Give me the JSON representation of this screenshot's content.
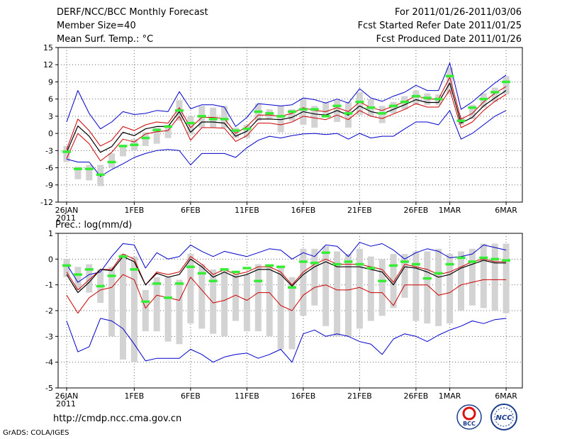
{
  "header": {
    "line1_left": "DERF/NCC/BCC Monthly Forecast",
    "line2_left": "Member Size=40",
    "line3_left": "Mean Surf. Temp.: °C",
    "line1_right": "For 2011/01/26-2011/03/06",
    "line2_right": "Fcst Started Refer Date 2011/01/25",
    "line3_right": "Fcst Produced Date 2011/01/26"
  },
  "footer": {
    "url": "http://cmdp.ncc.cma.gov.cn",
    "credit": "GrADS: COLA/IGES",
    "logo1_text": "BCC",
    "logo2_text": "NCC"
  },
  "colors": {
    "envelope": "#0000cc",
    "spread": "#cc0000",
    "mean": "#000000",
    "box": "#d3d3d3",
    "dash": "#33ee33",
    "grid": "#666666"
  },
  "chart_data": [
    {
      "type": "line",
      "title": "Mean Surf. Temp.: °C",
      "ylabel": "°C",
      "ylim": [
        -12,
        15
      ],
      "yticks": [
        15,
        12,
        9,
        6,
        3,
        0,
        -3,
        -6,
        -9,
        -12
      ],
      "xtick_labels": [
        "26JAN",
        "1FEB",
        "6FEB",
        "11FEB",
        "16FEB",
        "21FEB",
        "26FEB",
        "1MAR",
        "6MAR"
      ],
      "xtick_days": [
        0,
        6,
        11,
        16,
        21,
        26,
        31,
        34,
        39
      ],
      "year_label": "2011",
      "days": 40,
      "series": [
        {
          "name": "max",
          "values": [
            2.0,
            7.5,
            3.5,
            0.8,
            2.0,
            3.8,
            3.3,
            3.5,
            4.0,
            3.8,
            7.3,
            4.3,
            5.0,
            5.0,
            4.6,
            1.2,
            2.8,
            5.2,
            5.0,
            4.8,
            5.0,
            6.2,
            5.9,
            5.3,
            6.0,
            5.3,
            7.8,
            6.2,
            5.6,
            6.5,
            7.2,
            8.4,
            7.5,
            7.5,
            12.3,
            4.2,
            5.5,
            7.2,
            8.8,
            10.2
          ]
        },
        {
          "name": "upper",
          "values": [
            -2.8,
            2.5,
            0.5,
            -2.2,
            -1.2,
            1.2,
            0.5,
            1.5,
            2.0,
            1.8,
            4.5,
            1.0,
            2.8,
            2.8,
            2.6,
            0.0,
            1.2,
            3.2,
            3.2,
            3.0,
            3.5,
            4.5,
            4.0,
            3.8,
            4.5,
            3.8,
            5.5,
            4.5,
            4.0,
            4.8,
            5.5,
            6.6,
            6.0,
            6.0,
            9.8,
            2.5,
            3.5,
            5.5,
            7.0,
            8.2
          ]
        },
        {
          "name": "mean",
          "values": [
            -3.3,
            1.3,
            -0.5,
            -3.3,
            -2.3,
            0.2,
            -0.4,
            0.8,
            1.2,
            1.2,
            3.8,
            0.2,
            2.0,
            2.0,
            1.8,
            -0.5,
            0.4,
            2.5,
            2.5,
            2.4,
            2.8,
            3.8,
            3.4,
            3.2,
            4.0,
            3.2,
            4.8,
            3.8,
            3.4,
            4.2,
            5.0,
            5.9,
            5.4,
            5.4,
            8.8,
            1.8,
            2.8,
            4.8,
            6.2,
            7.5
          ]
        },
        {
          "name": "lower",
          "values": [
            -4.4,
            0.0,
            -1.8,
            -4.8,
            -3.3,
            -1.0,
            -1.5,
            -0.1,
            0.3,
            0.5,
            3.0,
            -1.2,
            1.0,
            1.0,
            0.9,
            -1.4,
            -0.4,
            1.8,
            1.8,
            1.5,
            2.0,
            3.0,
            2.7,
            2.4,
            3.2,
            2.4,
            4.0,
            3.0,
            2.6,
            3.4,
            4.2,
            5.2,
            4.6,
            4.6,
            7.6,
            1.0,
            2.0,
            4.0,
            5.6,
            6.8
          ]
        },
        {
          "name": "min",
          "values": [
            -4.5,
            -5.0,
            -5.0,
            -7.5,
            -6.3,
            -5.3,
            -4.2,
            -3.5,
            -3.0,
            -2.8,
            -3.0,
            -5.5,
            -3.5,
            -3.5,
            -3.5,
            -4.2,
            -2.5,
            -1.2,
            -0.5,
            -0.8,
            -0.4,
            -0.1,
            0.0,
            -0.2,
            0.0,
            -1.0,
            0.0,
            -0.8,
            -0.5,
            -0.5,
            0.8,
            2.0,
            2.0,
            1.5,
            4.0,
            -1.0,
            0.0,
            1.5,
            3.0,
            4.0
          ]
        },
        {
          "name": "box_top",
          "values": [
            -2.2,
            -5.8,
            -5.5,
            -5.5,
            -3.5,
            -2.0,
            -1.0,
            0.2,
            1.0,
            1.5,
            5.8,
            3.0,
            4.8,
            4.5,
            4.8,
            1.0,
            1.5,
            5.2,
            4.2,
            4.8,
            4.2,
            6.0,
            4.8,
            5.5,
            5.8,
            5.5,
            7.2,
            6.0,
            4.8,
            5.5,
            6.5,
            7.5,
            7.0,
            6.8,
            11.5,
            2.8,
            5.0,
            7.0,
            8.0,
            10.0
          ]
        },
        {
          "name": "box_bottom",
          "values": [
            -5.0,
            -8.0,
            -8.2,
            -9.2,
            -6.0,
            -4.0,
            -3.0,
            -2.2,
            -1.8,
            -0.8,
            2.2,
            -0.2,
            1.0,
            1.0,
            1.0,
            -0.8,
            -0.8,
            2.2,
            2.5,
            0.2,
            2.2,
            1.5,
            1.0,
            2.8,
            2.0,
            1.0,
            3.2,
            3.0,
            1.8,
            3.5,
            4.2,
            5.0,
            5.0,
            5.0,
            6.8,
            1.5,
            2.5,
            4.5,
            5.5,
            6.8
          ]
        },
        {
          "name": "observed",
          "values": [
            -3.2,
            -6.2,
            -6.2,
            -7.2,
            -5.0,
            -2.2,
            -2.0,
            -0.8,
            0.6,
            1.2,
            4.0,
            1.8,
            3.0,
            2.5,
            2.5,
            0.5,
            0.8,
            3.8,
            3.5,
            3.0,
            3.8,
            4.2,
            4.2,
            3.0,
            4.8,
            3.5,
            5.5,
            4.5,
            3.5,
            4.8,
            5.5,
            6.5,
            6.2,
            6.0,
            10.0,
            2.2,
            4.5,
            6.0,
            7.2,
            9.0
          ]
        }
      ]
    },
    {
      "type": "line",
      "title": "Prec.: log(mm/d)",
      "ylabel": "log(mm/d)",
      "ylim": [
        -5,
        1
      ],
      "yticks": [
        1,
        0,
        -1,
        -2,
        -3,
        -4,
        -5
      ],
      "xtick_labels": [
        "26JAN",
        "1FEB",
        "6FEB",
        "11FEB",
        "16FEB",
        "21FEB",
        "26FEB",
        "1MAR",
        "6MAR"
      ],
      "xtick_days": [
        0,
        6,
        11,
        16,
        21,
        26,
        31,
        34,
        39
      ],
      "year_label": "2011",
      "days": 40,
      "series": [
        {
          "name": "max",
          "values": [
            -0.2,
            -0.9,
            -0.6,
            -0.5,
            0.1,
            0.6,
            0.55,
            -0.35,
            0.25,
            0.0,
            0.1,
            0.55,
            0.3,
            0.1,
            0.3,
            0.2,
            0.1,
            0.25,
            0.4,
            0.35,
            0.0,
            0.25,
            0.1,
            0.55,
            0.5,
            0.1,
            0.65,
            0.5,
            0.6,
            0.35,
            0.0,
            0.25,
            0.4,
            0.3,
            0.05,
            0.1,
            0.2,
            0.55,
            0.45,
            0.35
          ]
        },
        {
          "name": "upper",
          "values": [
            -0.5,
            -1.2,
            -0.8,
            -0.4,
            -0.4,
            0.2,
            0.0,
            -1.0,
            -0.5,
            -0.6,
            -0.5,
            0.1,
            -0.2,
            -0.6,
            -0.4,
            -0.6,
            -0.5,
            -0.3,
            -0.3,
            -0.5,
            -1.0,
            -0.5,
            -0.2,
            0.0,
            -0.2,
            -0.2,
            -0.2,
            -0.3,
            -0.4,
            -0.9,
            -0.2,
            -0.3,
            -0.4,
            -0.6,
            -0.5,
            -0.3,
            -0.1,
            0.0,
            -0.1,
            -0.1
          ]
        },
        {
          "name": "mean",
          "values": [
            -0.6,
            -1.3,
            -0.9,
            -0.4,
            -0.45,
            0.1,
            -0.1,
            -1.0,
            -0.55,
            -0.7,
            -0.6,
            0.0,
            -0.3,
            -0.7,
            -0.5,
            -0.7,
            -0.6,
            -0.4,
            -0.4,
            -0.6,
            -1.05,
            -0.6,
            -0.3,
            -0.1,
            -0.3,
            -0.3,
            -0.3,
            -0.4,
            -0.5,
            -1.0,
            -0.3,
            -0.35,
            -0.5,
            -0.7,
            -0.6,
            -0.35,
            -0.2,
            -0.05,
            -0.15,
            -0.15
          ]
        },
        {
          "name": "lower",
          "values": [
            -1.4,
            -2.1,
            -1.5,
            -1.2,
            -1.1,
            -0.6,
            -0.8,
            -1.9,
            -1.4,
            -1.5,
            -1.6,
            -0.7,
            -1.2,
            -1.7,
            -1.6,
            -1.4,
            -1.6,
            -1.3,
            -1.3,
            -1.8,
            -2.0,
            -1.4,
            -1.1,
            -1.0,
            -1.2,
            -1.2,
            -1.1,
            -1.3,
            -1.3,
            -1.8,
            -1.0,
            -1.0,
            -1.0,
            -1.4,
            -1.3,
            -1.0,
            -0.9,
            -0.8,
            -0.8,
            -0.8
          ]
        },
        {
          "name": "min",
          "values": [
            -2.4,
            -3.6,
            -3.4,
            -2.3,
            -2.4,
            -2.7,
            -3.3,
            -3.95,
            -3.85,
            -3.85,
            -3.85,
            -3.5,
            -3.7,
            -4.0,
            -3.8,
            -3.7,
            -3.65,
            -3.85,
            -3.7,
            -3.5,
            -4.0,
            -2.9,
            -2.75,
            -3.0,
            -2.9,
            -3.0,
            -3.2,
            -3.3,
            -3.7,
            -3.1,
            -2.9,
            -3.0,
            -3.2,
            -2.95,
            -2.75,
            -2.6,
            -2.4,
            -2.5,
            -2.35,
            -2.3
          ]
        },
        {
          "name": "box_top",
          "values": [
            0.0,
            -0.3,
            -0.2,
            -0.4,
            -0.3,
            0.2,
            0.1,
            -1.2,
            -0.7,
            -0.7,
            -0.8,
            0.2,
            -0.2,
            -0.4,
            -0.4,
            -0.6,
            -0.6,
            -0.2,
            -0.2,
            -0.3,
            -0.7,
            0.4,
            0.4,
            0.5,
            0.3,
            0.2,
            0.4,
            0.1,
            0.0,
            0.2,
            0.2,
            0.3,
            0.3,
            0.4,
            0.2,
            0.3,
            0.4,
            0.6,
            0.6,
            0.6
          ]
        },
        {
          "name": "box_bottom",
          "values": [
            -0.7,
            -1.2,
            -1.3,
            -1.7,
            -3.0,
            -3.9,
            -4.0,
            -2.8,
            -2.8,
            -3.2,
            -3.3,
            -2.5,
            -2.7,
            -2.9,
            -3.0,
            -2.4,
            -2.8,
            -2.8,
            -3.0,
            -3.5,
            -3.5,
            -2.2,
            -1.8,
            -2.6,
            -3.0,
            -3.0,
            -2.7,
            -2.4,
            -2.2,
            -1.9,
            -1.5,
            -2.4,
            -2.5,
            -2.6,
            -2.5,
            -2.0,
            -1.8,
            -1.9,
            -2.0,
            -2.1
          ]
        },
        {
          "name": "observed",
          "values": [
            -0.25,
            -0.6,
            -0.4,
            -1.05,
            -0.65,
            0.1,
            -0.4,
            -1.65,
            -0.95,
            -1.5,
            -0.95,
            -0.3,
            -0.55,
            -0.85,
            -0.4,
            -0.5,
            -0.35,
            -0.85,
            -0.25,
            -0.3,
            -1.1,
            -0.1,
            -0.15,
            0.25,
            -0.2,
            -0.1,
            -0.2,
            -0.35,
            -0.85,
            -0.25,
            -0.1,
            -0.2,
            -0.75,
            -0.55,
            -0.2,
            0.05,
            -0.1,
            0.05,
            0.0,
            -0.05
          ]
        }
      ]
    }
  ]
}
